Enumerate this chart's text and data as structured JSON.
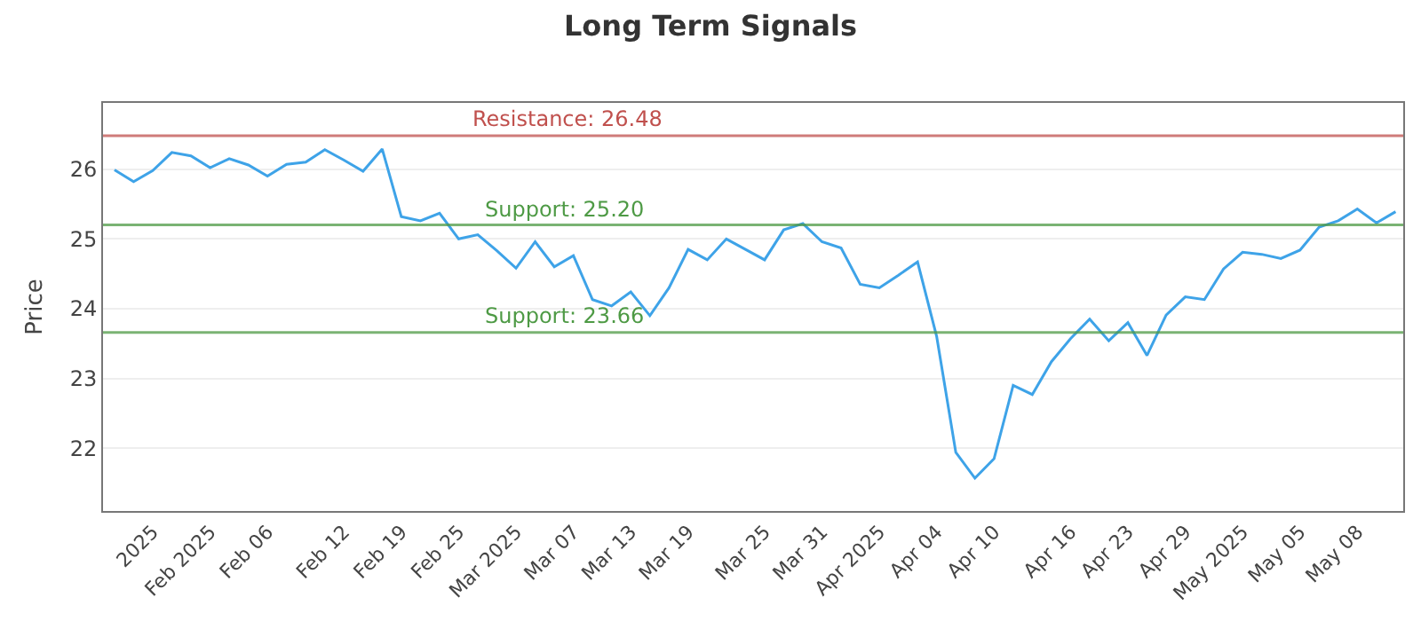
{
  "chart_data": {
    "type": "line",
    "title": "Long Term Signals",
    "ylabel": "Price",
    "categories": [
      null,
      null,
      "2025",
      null,
      null,
      "Feb 2025",
      null,
      null,
      "Feb 06",
      null,
      null,
      null,
      "Feb 12",
      null,
      null,
      "Feb 19",
      null,
      null,
      "Feb 25",
      null,
      null,
      "Mar 2025",
      null,
      null,
      "Mar 07",
      null,
      null,
      "Mar 13",
      null,
      null,
      "Mar 19",
      null,
      null,
      null,
      "Mar 25",
      null,
      null,
      "Mar 31",
      null,
      null,
      "Apr 2025",
      null,
      null,
      "Apr 04",
      null,
      null,
      "Apr 10",
      null,
      null,
      null,
      "Apr 16",
      null,
      null,
      "Apr 23",
      null,
      null,
      "Apr 29",
      null,
      null,
      "May 2025",
      null,
      null,
      "May 05",
      null,
      null,
      "May 08",
      null,
      null
    ],
    "series": [
      {
        "color": "#3ea3e8",
        "values": [
          25.99,
          25.82,
          25.98,
          26.24,
          26.19,
          26.02,
          26.15,
          26.06,
          25.9,
          26.07,
          26.1,
          26.28,
          26.13,
          25.97,
          26.29,
          25.32,
          25.26,
          25.37,
          25.0,
          25.06,
          24.83,
          24.58,
          24.96,
          24.6,
          24.76,
          24.13,
          24.04,
          24.24,
          23.9,
          24.3,
          24.85,
          24.7,
          25.0,
          24.85,
          24.7,
          25.13,
          25.22,
          24.96,
          24.87,
          24.35,
          24.3,
          24.48,
          24.67,
          23.6,
          21.94,
          21.57,
          21.85,
          22.9,
          22.77,
          23.24,
          23.57,
          23.85,
          23.54,
          23.8,
          23.33,
          23.91,
          24.17,
          24.13,
          24.57,
          24.81,
          24.78,
          24.72,
          24.84,
          25.17,
          25.26,
          25.43,
          25.23,
          25.39
        ]
      }
    ],
    "ylim": [
      21.1,
      26.95
    ],
    "yticks": [
      22,
      23,
      24,
      25,
      26
    ],
    "grid": "y",
    "marker": "none",
    "line_style": "solid",
    "ref_lines": [
      {
        "axis": "y",
        "value": 26.48,
        "label": "Resistance: 26.48",
        "color": "#c0504d"
      },
      {
        "axis": "y",
        "value": 25.2,
        "label": "Support: 25.20",
        "color": "#4e9a45"
      },
      {
        "axis": "y",
        "value": 23.66,
        "label": "Support: 23.66",
        "color": "#4e9a45"
      }
    ]
  }
}
